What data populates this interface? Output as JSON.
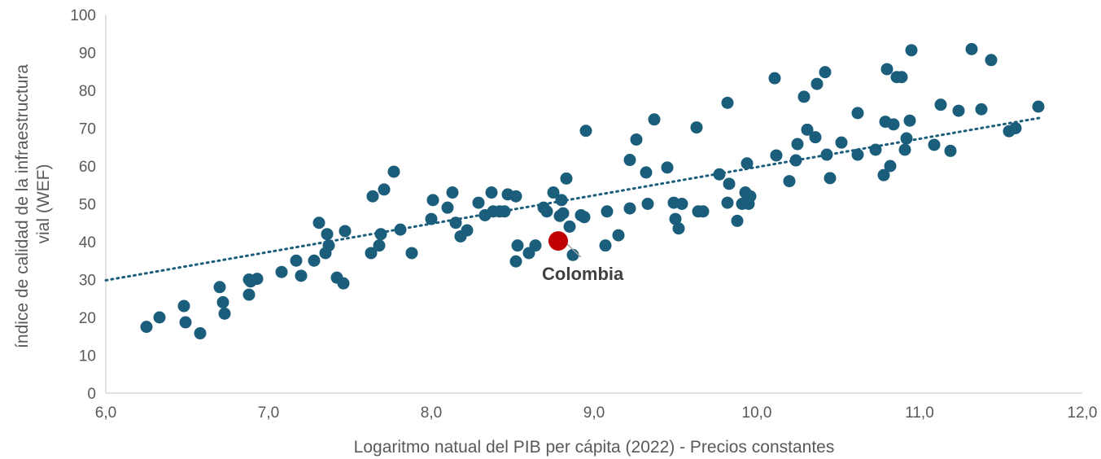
{
  "chart_data": {
    "type": "scatter",
    "title": "",
    "xlabel": "Logaritmo natual del PIB per cápita (2022) - Precios constantes",
    "ylabel_lines": [
      "índice de calidad de la infraestructura",
      "vial (WEF)"
    ],
    "xlim": [
      6.0,
      12.0
    ],
    "ylim": [
      0,
      100
    ],
    "x_ticks": [
      6.0,
      7.0,
      8.0,
      9.0,
      10.0,
      11.0,
      12.0
    ],
    "x_tick_labels": [
      "6,0",
      "7,0",
      "8,0",
      "9,0",
      "10,0",
      "11,0",
      "12,0"
    ],
    "y_ticks": [
      0,
      10,
      20,
      30,
      40,
      50,
      60,
      70,
      80,
      90,
      100
    ],
    "y_tick_labels": [
      "0",
      "10",
      "20",
      "30",
      "40",
      "50",
      "60",
      "70",
      "80",
      "90",
      "100"
    ],
    "grid": false,
    "colors": {
      "points": "#1b5e7b",
      "highlight": "#c00000",
      "trendline": "#1b5e7b",
      "axis": "#d9d9d9",
      "text": "#595959"
    },
    "trendline": {
      "style": "dotted",
      "x": [
        6.0,
        11.75
      ],
      "y": [
        29.8,
        72.8
      ]
    },
    "highlight": {
      "label": "Colombia",
      "x": 8.78,
      "y": 40.2
    },
    "points": [
      [
        6.25,
        17.5
      ],
      [
        6.33,
        20.0
      ],
      [
        6.48,
        23.0
      ],
      [
        6.49,
        18.7
      ],
      [
        6.58,
        15.8
      ],
      [
        6.7,
        28.0
      ],
      [
        6.72,
        24.0
      ],
      [
        6.73,
        21.0
      ],
      [
        6.88,
        30.0
      ],
      [
        6.88,
        26.0
      ],
      [
        6.89,
        29.5
      ],
      [
        6.93,
        30.2
      ],
      [
        7.08,
        32.0
      ],
      [
        7.17,
        35.0
      ],
      [
        7.2,
        31.0
      ],
      [
        7.28,
        35.0
      ],
      [
        7.31,
        45.0
      ],
      [
        7.35,
        37.0
      ],
      [
        7.36,
        42.0
      ],
      [
        7.37,
        39.0
      ],
      [
        7.42,
        30.5
      ],
      [
        7.46,
        29.0
      ],
      [
        7.47,
        42.8
      ],
      [
        7.63,
        37.0
      ],
      [
        7.64,
        52.0
      ],
      [
        7.68,
        39.0
      ],
      [
        7.69,
        42.0
      ],
      [
        7.71,
        53.8
      ],
      [
        7.77,
        58.5
      ],
      [
        7.81,
        43.2
      ],
      [
        7.88,
        37.0
      ],
      [
        8.0,
        46.0
      ],
      [
        8.01,
        51.0
      ],
      [
        8.1,
        49.0
      ],
      [
        8.13,
        53.0
      ],
      [
        8.15,
        45.0
      ],
      [
        8.18,
        41.4
      ],
      [
        8.22,
        43.0
      ],
      [
        8.29,
        50.3
      ],
      [
        8.33,
        47.0
      ],
      [
        8.37,
        53.0
      ],
      [
        8.38,
        48.0
      ],
      [
        8.42,
        48.0
      ],
      [
        8.45,
        48.0
      ],
      [
        8.47,
        52.5
      ],
      [
        8.52,
        52.0
      ],
      [
        8.52,
        34.8
      ],
      [
        8.53,
        39.0
      ],
      [
        8.6,
        37.0
      ],
      [
        8.64,
        39.0
      ],
      [
        8.69,
        49.0
      ],
      [
        8.71,
        48.0
      ],
      [
        8.75,
        53.0
      ],
      [
        8.79,
        46.8
      ],
      [
        8.8,
        51.0
      ],
      [
        8.81,
        47.5
      ],
      [
        8.83,
        56.7
      ],
      [
        8.85,
        44.0
      ],
      [
        8.87,
        36.5
      ],
      [
        8.92,
        47.0
      ],
      [
        8.94,
        46.5
      ],
      [
        8.95,
        69.3
      ],
      [
        9.07,
        39.0
      ],
      [
        9.08,
        48.0
      ],
      [
        9.15,
        41.7
      ],
      [
        9.22,
        48.8
      ],
      [
        9.22,
        61.6
      ],
      [
        9.26,
        67.0
      ],
      [
        9.32,
        58.3
      ],
      [
        9.33,
        50.0
      ],
      [
        9.37,
        72.3
      ],
      [
        9.45,
        59.6
      ],
      [
        9.49,
        50.3
      ],
      [
        9.5,
        46.0
      ],
      [
        9.52,
        43.5
      ],
      [
        9.54,
        50.0
      ],
      [
        9.63,
        70.2
      ],
      [
        9.64,
        48.0
      ],
      [
        9.67,
        48.0
      ],
      [
        9.77,
        57.8
      ],
      [
        9.82,
        50.3
      ],
      [
        9.82,
        76.7
      ],
      [
        9.83,
        55.3
      ],
      [
        9.88,
        45.5
      ],
      [
        9.91,
        50.0
      ],
      [
        9.93,
        53.0
      ],
      [
        9.94,
        60.7
      ],
      [
        9.95,
        50.0
      ],
      [
        9.96,
        52.0
      ],
      [
        10.11,
        83.2
      ],
      [
        10.12,
        62.8
      ],
      [
        10.2,
        56.0
      ],
      [
        10.24,
        61.5
      ],
      [
        10.25,
        65.8
      ],
      [
        10.29,
        78.3
      ],
      [
        10.31,
        69.6
      ],
      [
        10.36,
        67.6
      ],
      [
        10.37,
        81.7
      ],
      [
        10.42,
        84.8
      ],
      [
        10.43,
        63.0
      ],
      [
        10.45,
        56.8
      ],
      [
        10.52,
        66.2
      ],
      [
        10.62,
        74.0
      ],
      [
        10.62,
        63.0
      ],
      [
        10.73,
        64.3
      ],
      [
        10.78,
        57.6
      ],
      [
        10.79,
        71.7
      ],
      [
        10.8,
        85.6
      ],
      [
        10.82,
        60.0
      ],
      [
        10.84,
        71.0
      ],
      [
        10.86,
        83.5
      ],
      [
        10.89,
        83.5
      ],
      [
        10.91,
        64.3
      ],
      [
        10.92,
        67.3
      ],
      [
        10.94,
        72.0
      ],
      [
        10.95,
        90.6
      ],
      [
        11.09,
        65.6
      ],
      [
        11.13,
        76.2
      ],
      [
        11.19,
        64.0
      ],
      [
        11.24,
        74.6
      ],
      [
        11.32,
        90.9
      ],
      [
        11.38,
        75.0
      ],
      [
        11.44,
        88.0
      ],
      [
        11.55,
        69.2
      ],
      [
        11.59,
        70.0
      ],
      [
        11.73,
        75.7
      ]
    ]
  }
}
